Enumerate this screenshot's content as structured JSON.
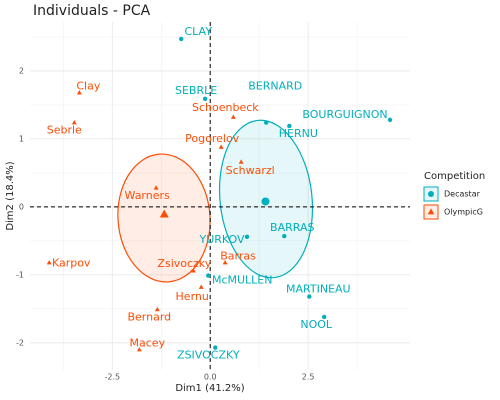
{
  "chart_data": {
    "type": "scatter",
    "title": "Individuals - PCA",
    "x_label": "Dim1 (41.2%)",
    "y_label": "Dim2 (18.4%)",
    "xlim": [
      -4.6,
      5.1
    ],
    "ylim": [
      -2.4,
      2.72
    ],
    "xticks": [
      -2.5,
      {
        "value": 0,
        "label": "0.0"
      },
      2.5
    ],
    "yticks": [
      -2,
      -1,
      0,
      1,
      2
    ],
    "grid": true,
    "legend_title": "Competition",
    "series": [
      {
        "name": "Decastar",
        "color": "#00AFBB",
        "marker": "circle",
        "labels": [
          "CLAY",
          "SEBRLE",
          "BERNARD",
          "BOURGUIGNON",
          "HERNU",
          "YURKOV",
          "BARRAS",
          "McMULLEN",
          "MARTINEAU",
          "NOOL",
          "ZSIVOCZKY"
        ],
        "x": [
          -0.74,
          -0.13,
          1.43,
          4.59,
          2.02,
          0.94,
          1.89,
          -0.05,
          2.53,
          2.91,
          0.13
        ],
        "values": [
          2.47,
          1.59,
          1.24,
          1.28,
          1.19,
          -0.44,
          -0.43,
          -1.01,
          -1.32,
          -1.62,
          -2.07
        ]
      },
      {
        "name": "OlympicG",
        "color": "#FC4E07",
        "marker": "triangle",
        "labels": [
          "Clay",
          "Sebrle",
          "Schoenbeck",
          "Pogorelov",
          "Schwarzl",
          "Warners",
          "Karpov",
          "Zsivoczky",
          "Barras",
          "Hernu",
          "Bernard",
          "Macey"
        ],
        "x": [
          -3.34,
          -3.47,
          0.59,
          0.28,
          0.79,
          -1.38,
          -4.11,
          -0.43,
          0.38,
          -0.23,
          -1.35,
          -1.81
        ],
        "values": [
          1.68,
          1.24,
          1.32,
          0.88,
          0.66,
          0.28,
          -0.82,
          -0.94,
          -0.82,
          -1.18,
          -1.51,
          -2.1
        ]
      }
    ]
  }
}
